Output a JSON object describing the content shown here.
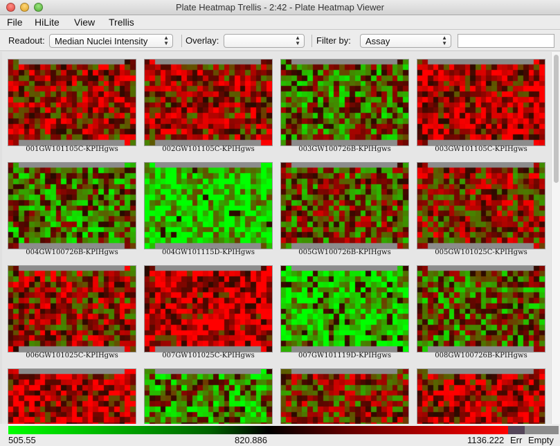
{
  "window": {
    "title": "Plate Heatmap Trellis - 2:42 - Plate Heatmap Viewer"
  },
  "menu": [
    "File",
    "HiLite",
    "View",
    "Trellis"
  ],
  "toolbar": {
    "readout_label": "Readout:",
    "readout_value": "Median Nuclei Intensity",
    "overlay_label": "Overlay:",
    "overlay_value": "",
    "filter_label": "Filter by:",
    "filter_value": "Assay",
    "filter_text": ""
  },
  "plates": [
    {
      "name": "001GW101105C-KPIHgws",
      "level": 0.7
    },
    {
      "name": "002GW101105C-KPIHgws",
      "level": 0.68
    },
    {
      "name": "003GW100726B-KPIHgws",
      "level": 0.42
    },
    {
      "name": "003GW101105C-KPIHgws",
      "level": 0.78
    },
    {
      "name": "004GW100726B-KPIHgws",
      "level": 0.4
    },
    {
      "name": "004GW101115D-KPIHgws",
      "level": 0.15
    },
    {
      "name": "005GW100726B-KPIHgws",
      "level": 0.52
    },
    {
      "name": "005GW101025C-KPIHgws",
      "level": 0.62
    },
    {
      "name": "006GW101025C-KPIHgws",
      "level": 0.66
    },
    {
      "name": "007GW101025C-KPIHgws",
      "level": 0.82
    },
    {
      "name": "007GW101119D-KPIHgws",
      "level": 0.22
    },
    {
      "name": "008GW100726B-KPIHgws",
      "level": 0.45
    },
    {
      "name": "",
      "level": 0.8
    },
    {
      "name": "",
      "level": 0.35
    },
    {
      "name": "",
      "level": 0.6
    },
    {
      "name": "",
      "level": 0.76
    }
  ],
  "legend": {
    "min": "505.55",
    "mid": "820.886",
    "max": "1136.222",
    "err": "Err",
    "empty": "Empty"
  },
  "colors": {
    "low": "#00ff00",
    "mid": "#000000",
    "high": "#ff0000",
    "err": "#55465a",
    "empty": "#8c8c8c"
  }
}
